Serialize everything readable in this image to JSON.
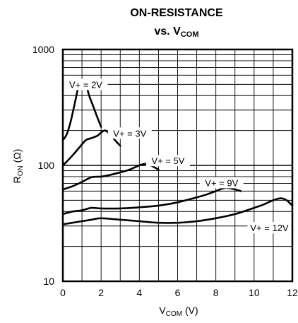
{
  "chart_data": {
    "type": "line",
    "title_line1": "ON-RESISTANCE",
    "title_line2_main": "vs. V",
    "title_line2_sub": "COM",
    "xlabel_main": "V",
    "xlabel_sub": "COM",
    "xlabel_unit": " (V)",
    "ylabel_main": "R",
    "ylabel_sub": "ON",
    "ylabel_unit": " (Ω)",
    "x_scale": "linear",
    "y_scale": "log",
    "xlim": [
      0,
      12
    ],
    "ylim": [
      10,
      1000
    ],
    "x_ticks": [
      0,
      2,
      4,
      6,
      8,
      10,
      12
    ],
    "y_ticks": [
      10,
      100,
      1000
    ],
    "grid": true,
    "series": [
      {
        "name": "V+ = 2V",
        "label_at": [
          1.2,
          500
        ],
        "x": [
          0,
          0.2,
          0.4,
          0.6,
          0.8,
          0.9,
          1.0,
          1.1,
          1.25,
          1.4,
          1.6,
          1.8,
          2.0
        ],
        "y": [
          165,
          185,
          235,
          330,
          470,
          540,
          550,
          530,
          470,
          390,
          320,
          260,
          215
        ]
      },
      {
        "name": "V+ = 3V",
        "label_at": [
          3.5,
          190
        ],
        "x": [
          0,
          0.3,
          0.6,
          0.9,
          1.2,
          1.5,
          1.8,
          2.0,
          2.2,
          2.4,
          2.6,
          2.8,
          3.0
        ],
        "y": [
          100,
          112,
          127,
          145,
          165,
          172,
          180,
          192,
          200,
          190,
          175,
          160,
          148
        ]
      },
      {
        "name": "V+ = 5V",
        "label_at": [
          5.5,
          110
        ],
        "x": [
          0,
          0.5,
          1.0,
          1.5,
          2.0,
          2.5,
          3.0,
          3.5,
          4.0,
          4.3,
          4.6,
          4.8,
          5.0
        ],
        "y": [
          62,
          66,
          72,
          79,
          80,
          83,
          87,
          92,
          100,
          103,
          100,
          96,
          92
        ]
      },
      {
        "name": "V+ = 9V",
        "label_at": [
          8.3,
          71
        ],
        "x": [
          0,
          0.5,
          1.0,
          1.5,
          2.0,
          3.0,
          4.0,
          5.0,
          6.0,
          7.0,
          7.5,
          8.0,
          8.5,
          9.0,
          9.3
        ],
        "y": [
          38,
          40,
          41,
          43,
          42.5,
          42.5,
          43.5,
          45,
          48,
          53,
          56,
          60,
          64,
          62,
          60
        ]
      },
      {
        "name": "V+ = 12V",
        "label_at": [
          10.8,
          29
        ],
        "x": [
          0,
          0.5,
          1.0,
          1.5,
          2.0,
          3.0,
          4.0,
          5.0,
          6.0,
          7.0,
          8.0,
          9.0,
          10.0,
          10.5,
          11.0,
          11.4,
          11.7,
          12.0
        ],
        "y": [
          31,
          32,
          33,
          34,
          35,
          34,
          33,
          32,
          32,
          33,
          35,
          38,
          43,
          46,
          50,
          52,
          50,
          45
        ]
      }
    ]
  }
}
